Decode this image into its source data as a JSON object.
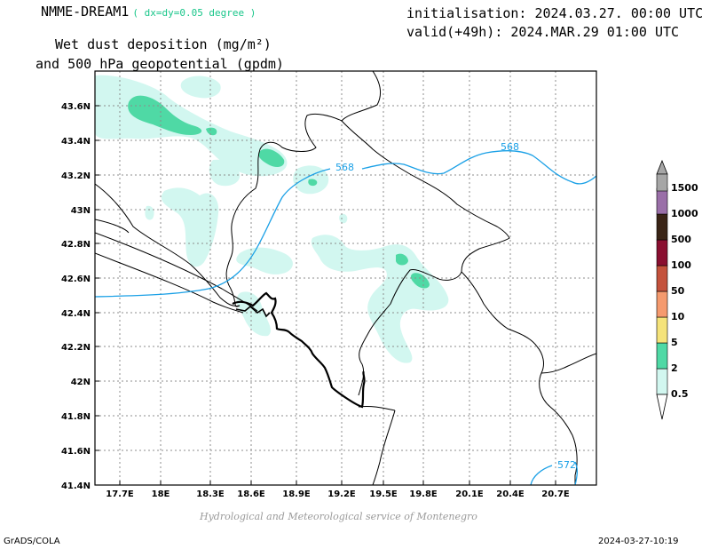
{
  "header": {
    "model": "NMME-DREAM1",
    "resolution": "( dx=dy=0.05 degree )",
    "init": "initialisation: 2024.03.27. 00:00 UTC",
    "valid": "valid(+49h): 2024.MAR.29 01:00 UTC",
    "variable_line1": "Wet dust deposition (mg/m²)",
    "variable_line2": "and 500 hPa geopotential (gpdm)"
  },
  "map": {
    "lon_ticks": [
      "17.7E",
      "18E",
      "18.3E",
      "18.6E",
      "18.9E",
      "19.2E",
      "19.5E",
      "19.8E",
      "20.1E",
      "20.4E",
      "20.7E"
    ],
    "lat_ticks": [
      "43.6N",
      "43.4N",
      "43.2N",
      "43N",
      "42.8N",
      "42.6N",
      "42.4N",
      "42.2N",
      "42N",
      "41.8N",
      "41.6N",
      "41.4N"
    ],
    "lon_range": [
      17.45,
      21.0
    ],
    "lat_range": [
      41.4,
      43.8
    ],
    "contours": [
      {
        "level": "568",
        "color": "#1aa0e6"
      },
      {
        "level": "568",
        "color": "#1aa0e6"
      },
      {
        "level": "572",
        "color": "#1aa0e6"
      }
    ],
    "grid": true
  },
  "colorbar": {
    "levels": [
      "0.5",
      "2",
      "5",
      "10",
      "50",
      "100",
      "500",
      "1000",
      "1500"
    ],
    "colors": [
      "#d2f7f0",
      "#4fd9a5",
      "#f5e37a",
      "#f59a6e",
      "#c4523c",
      "#8a0f30",
      "#3a2416",
      "#9a6fa8",
      "#a6a6a6"
    ]
  },
  "footer": {
    "credit": "Hydrological and Meteorological service of Montenegro",
    "software": "GrADS/COLA",
    "timestamp": "2024-03-27-10:19"
  }
}
